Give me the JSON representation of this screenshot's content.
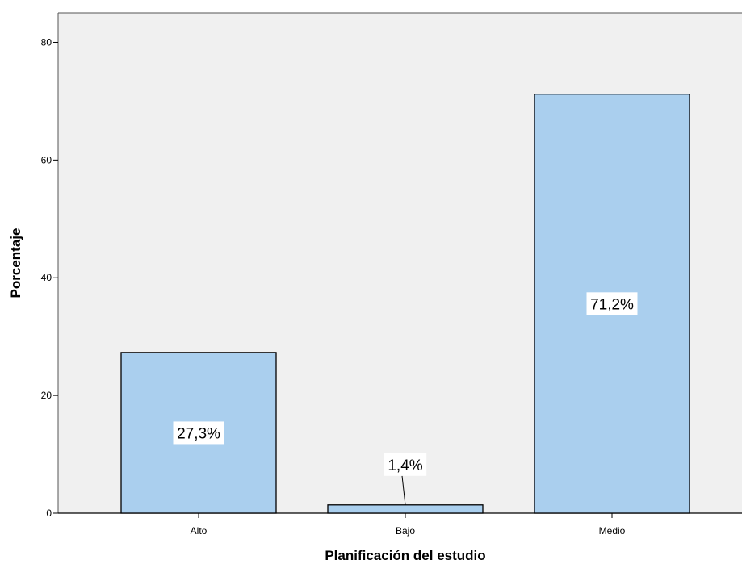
{
  "chart_data": {
    "type": "bar",
    "categories": [
      "Alto",
      "Bajo",
      "Medio"
    ],
    "values": [
      27.3,
      1.4,
      71.2
    ],
    "data_labels": [
      "27,3%",
      "1,4%",
      "71,2%"
    ],
    "xlabel": "Planificación del estudio",
    "ylabel": "Porcentaje",
    "ylim": [
      0,
      85
    ],
    "yticks": [
      0,
      20,
      40,
      60,
      80
    ],
    "grid": false,
    "colors": {
      "plot_background": "#f0f0f0",
      "bar_fill": "#aacfee",
      "bar_stroke": "#000000",
      "label_background": "#ffffff"
    }
  }
}
